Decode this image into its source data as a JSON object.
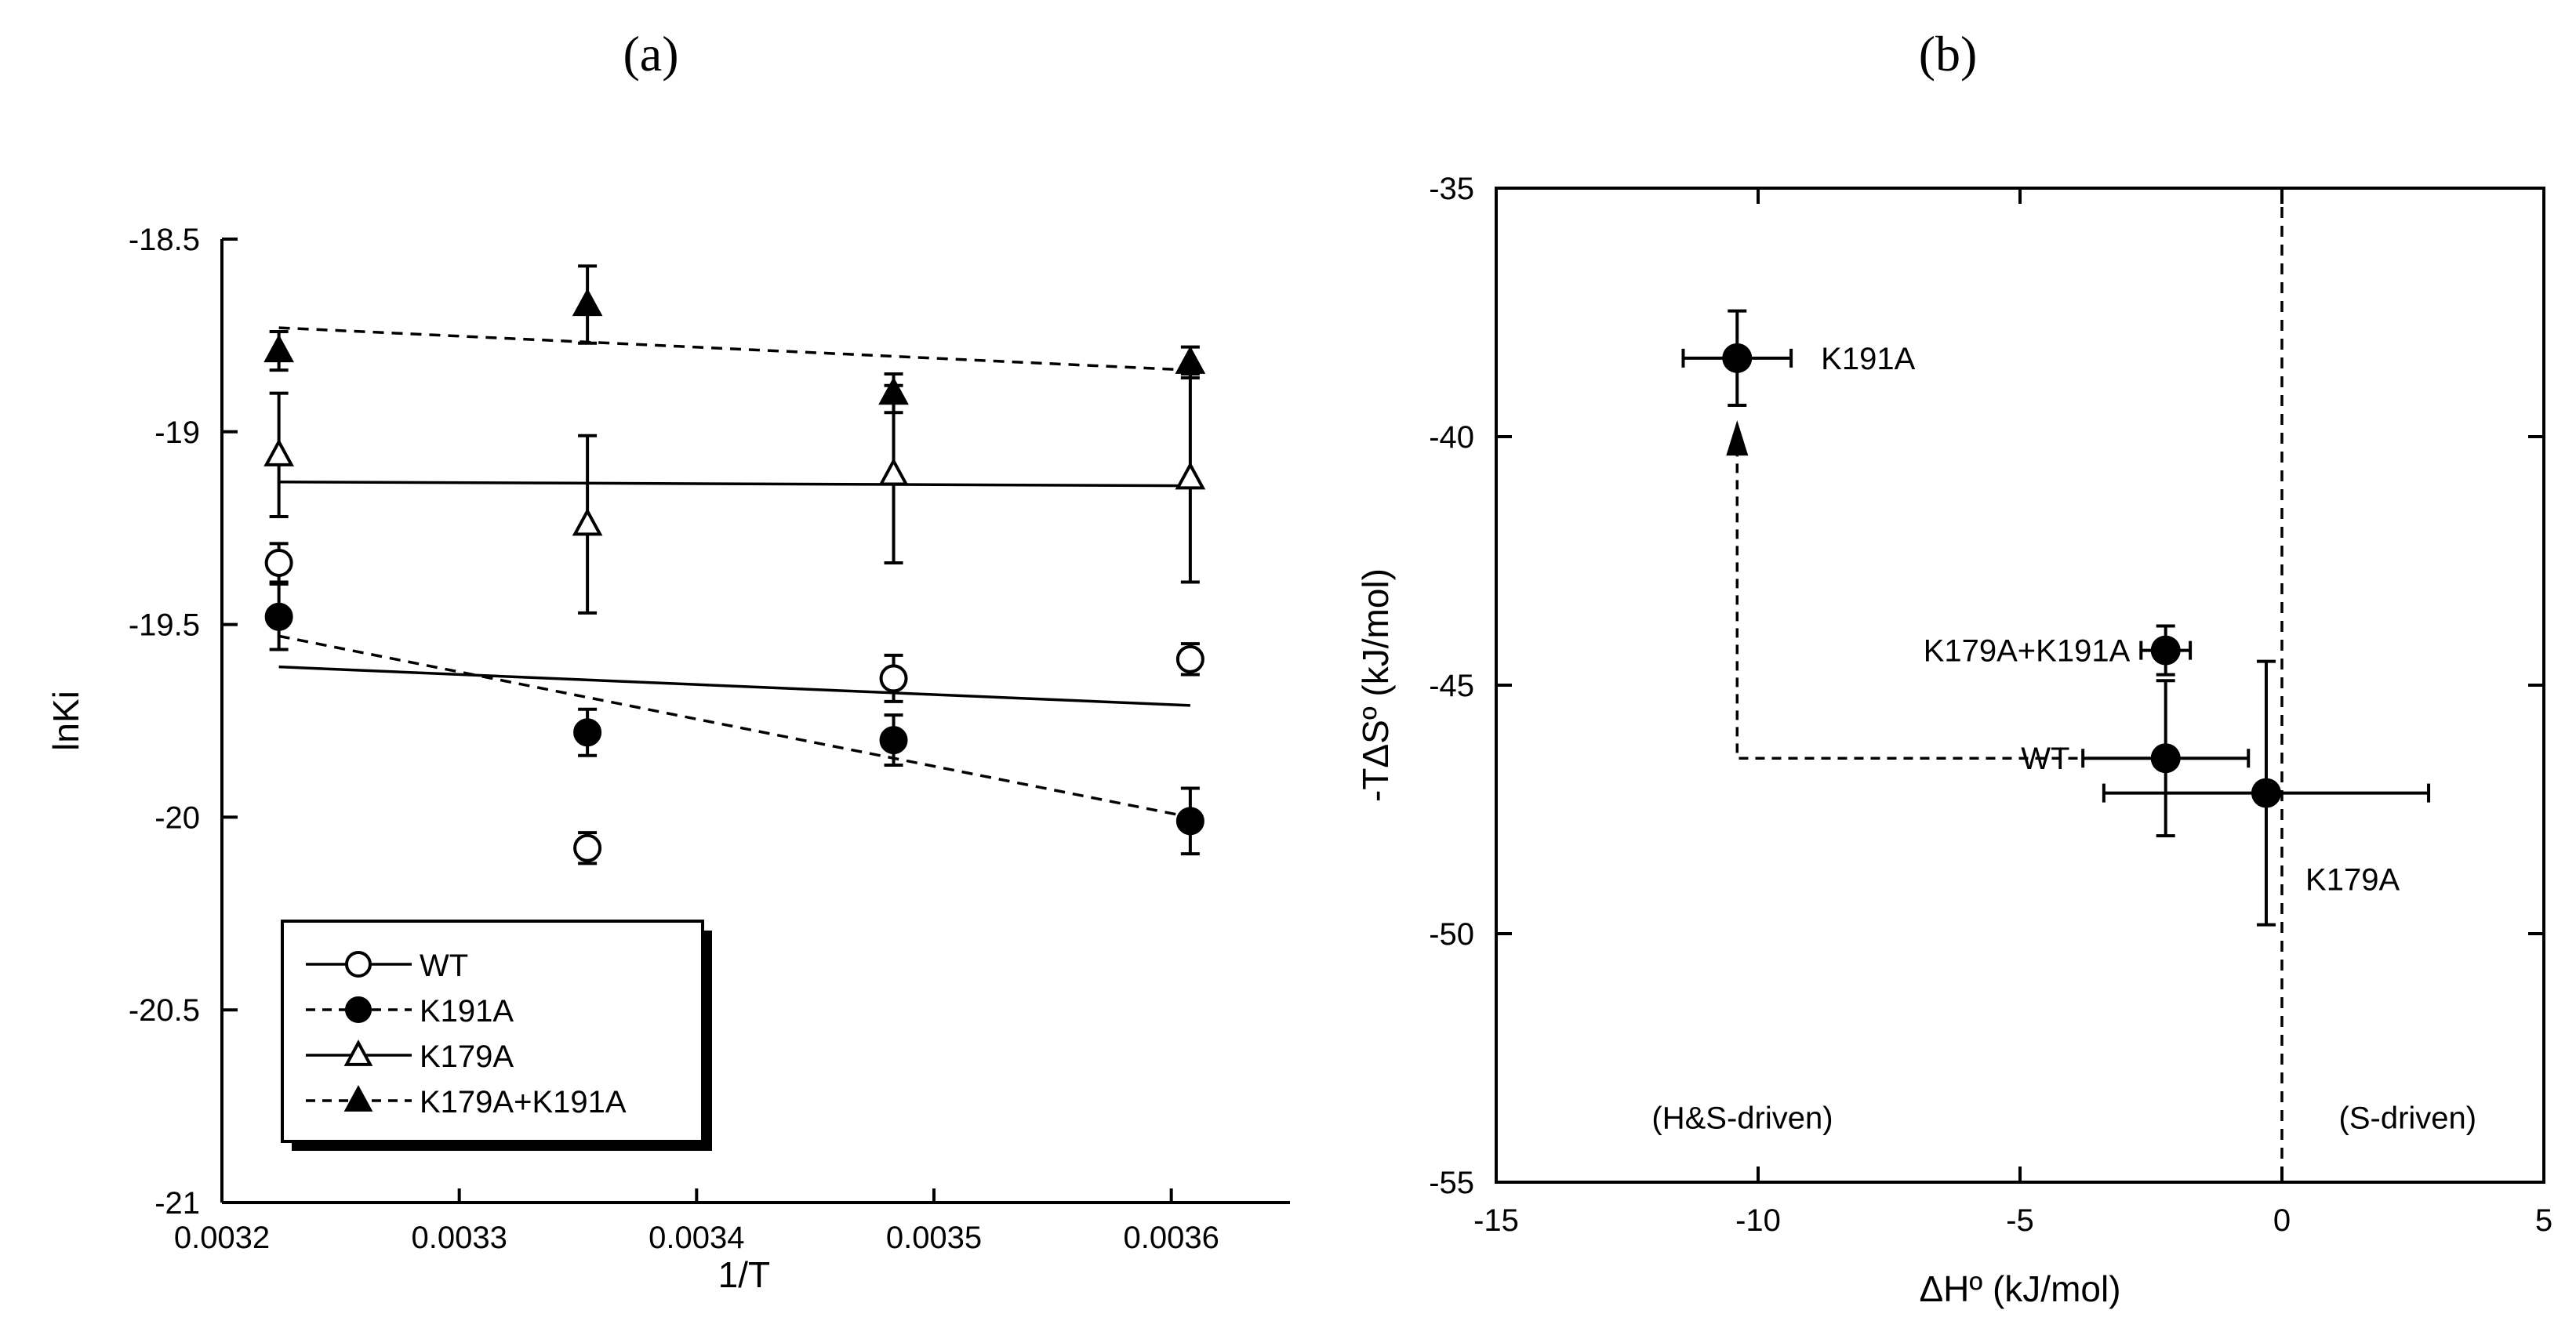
{
  "chart_data": [
    {
      "type": "scatter",
      "title": "(a)",
      "xlabel": "1/T",
      "ylabel": "lnKi",
      "xlim": [
        0.0032,
        0.00365
      ],
      "ylim": [
        -21,
        -18.5
      ],
      "xticks": [
        "0.0032",
        "0.0033",
        "0.0034",
        "0.0035",
        "0.0036"
      ],
      "xtick_values": [
        0.0032,
        0.0033,
        0.0034,
        0.0035,
        0.0036
      ],
      "yticks": [
        "-18.5",
        "-19",
        "-19.5",
        "-20",
        "-20.5",
        "-21"
      ],
      "ytick_values": [
        -18.5,
        -19,
        -19.5,
        -20,
        -20.5,
        -21
      ],
      "legend_position": "bottom-left",
      "x": [
        0.003224,
        0.003354,
        0.003483,
        0.003608
      ],
      "series": [
        {
          "name": "WT",
          "marker": "circle-open",
          "line": "solid",
          "y": [
            -19.34,
            -20.08,
            -19.64,
            -19.59
          ],
          "yerr": [
            0.05,
            0.04,
            0.06,
            0.04
          ],
          "fit": [
            -19.61,
            -19.71
          ]
        },
        {
          "name": "K191A",
          "marker": "circle-filled",
          "line": "dashed",
          "y": [
            -19.48,
            -19.78,
            -19.8,
            -20.01
          ],
          "yerr": [
            0.085,
            0.06,
            0.065,
            0.085
          ],
          "fit": [
            -19.53,
            -20.0
          ]
        },
        {
          "name": "K179A",
          "marker": "triangle-open",
          "line": "solid",
          "y": [
            -19.06,
            -19.24,
            -19.11,
            -19.12
          ],
          "yerr": [
            0.16,
            0.23,
            0.23,
            0.27
          ],
          "fit": [
            -19.13,
            -19.14
          ]
        },
        {
          "name": "K179A+K191A",
          "marker": "triangle-filled",
          "line": "dashed",
          "y": [
            -18.79,
            -18.67,
            -18.9,
            -18.82
          ],
          "yerr": [
            0.05,
            0.1,
            0.05,
            0.04
          ],
          "fit": [
            -18.73,
            -18.84
          ]
        }
      ]
    },
    {
      "type": "scatter",
      "title": "(b)",
      "xlabel": "ΔHº (kJ/mol)",
      "ylabel": "-TΔSº (kJ/mol)",
      "xlim": [
        -15,
        5
      ],
      "ylim": [
        -55,
        -35
      ],
      "xticks": [
        "-15",
        "-10",
        "-5",
        "0",
        "5"
      ],
      "xtick_values": [
        -15,
        -10,
        -5,
        0,
        5
      ],
      "yticks": [
        "-35",
        "-40",
        "-45",
        "-50",
        "-55"
      ],
      "ytick_values": [
        -35,
        -40,
        -45,
        -50,
        -55
      ],
      "points": [
        {
          "label": "K191A",
          "x": -10.4,
          "y": -38.42,
          "xerr": 1.03,
          "yerr": 0.95
        },
        {
          "label": "K179A+K191A",
          "x": -2.22,
          "y": -44.3,
          "xerr": 0.47,
          "yerr": 0.49
        },
        {
          "label": "WT",
          "x": -2.22,
          "y": -46.47,
          "xerr": 1.58,
          "yerr": 1.56
        },
        {
          "label": "K179A",
          "x": -0.3,
          "y": -47.17,
          "xerr": 3.1,
          "yerr": 2.65
        }
      ],
      "reference_line_x": 0,
      "arrow": {
        "from": "WT",
        "to": "K191A",
        "tip_y": -39.67
      },
      "region_labels": [
        "(H&S-driven)",
        "(S-driven)"
      ]
    }
  ]
}
